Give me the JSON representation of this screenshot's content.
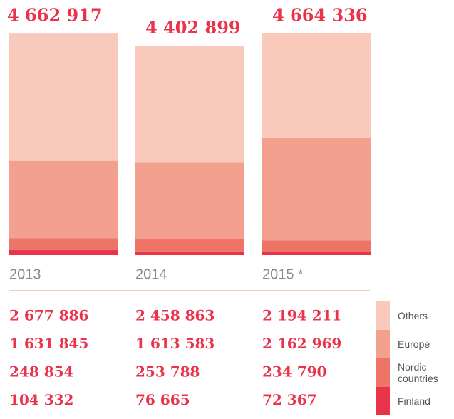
{
  "chart_data": {
    "type": "stacked_bar",
    "categories": [
      "2013",
      "2014",
      "2015 *"
    ],
    "totals": {
      "values": [
        4662917,
        4402899,
        4664336
      ],
      "value_labels": [
        "4 662 917",
        "4 402 899",
        "4 664 336"
      ]
    },
    "series": [
      {
        "name": "Finland",
        "color": "#e8334a",
        "values": [
          104332,
          76665,
          72367
        ],
        "value_labels": [
          "104 332",
          "76 665",
          "72 367"
        ]
      },
      {
        "name": "Nordic countries",
        "color": "#ee7466",
        "values": [
          248854,
          253788,
          234790
        ],
        "value_labels": [
          "248 854",
          "253 788",
          "234 790"
        ]
      },
      {
        "name": "Europe",
        "color": "#f4a08f",
        "values": [
          1631845,
          1613583,
          2162969
        ],
        "value_labels": [
          "1 631 845",
          "1 613 583",
          "2 162 969"
        ]
      },
      {
        "name": "Others",
        "color": "#f9c9bb",
        "values": [
          2677886,
          2458863,
          2194211
        ],
        "value_labels": [
          "2 677 886",
          "2 458 863",
          "2 194 211"
        ]
      }
    ]
  }
}
